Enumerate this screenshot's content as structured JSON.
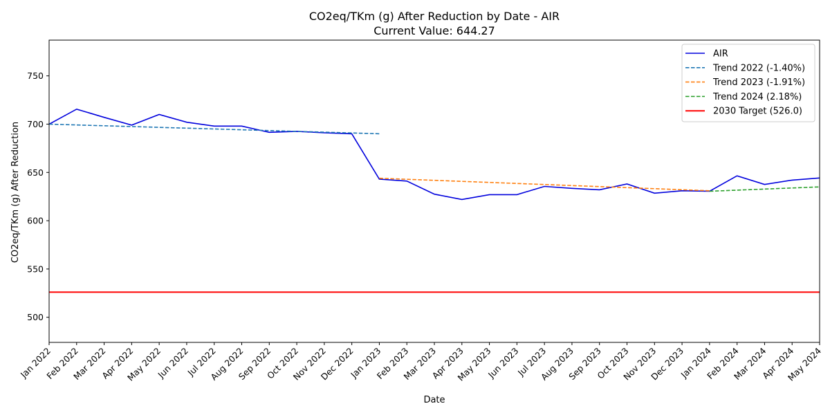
{
  "chart_data": {
    "type": "line",
    "title": "CO2eq/TKm (g) After Reduction by Date - AIR",
    "subtitle": "Current Value: 644.27",
    "xlabel": "Date",
    "ylabel": "CO2eq/TKm (g) After Reduction",
    "ylim": [
      474,
      787
    ],
    "yticks": [
      500,
      550,
      600,
      650,
      700,
      750
    ],
    "x": [
      "Jan 2022",
      "Feb 2022",
      "Mar 2022",
      "Apr 2022",
      "May 2022",
      "Jun 2022",
      "Jul 2022",
      "Aug 2022",
      "Sep 2022",
      "Oct 2022",
      "Nov 2022",
      "Dec 2022",
      "Jan 2023",
      "Feb 2023",
      "Mar 2023",
      "Apr 2023",
      "May 2023",
      "Jun 2023",
      "Jul 2023",
      "Aug 2023",
      "Sep 2023",
      "Oct 2023",
      "Nov 2023",
      "Dec 2023",
      "Jan 2024",
      "Feb 2024",
      "Mar 2024",
      "Apr 2024",
      "May 2024"
    ],
    "legend_position": "top-right",
    "grid": false,
    "series": [
      {
        "name": "AIR",
        "style": "solid",
        "color": "#0000dd",
        "values": [
          700,
          715.5,
          707,
          699,
          710,
          702,
          698,
          698,
          691.5,
          692.5,
          691,
          690,
          643,
          641,
          627.5,
          622,
          627,
          627,
          635.5,
          633.5,
          632,
          638,
          628.5,
          631,
          630.5,
          646.5,
          637.5,
          642,
          644.27
        ]
      },
      {
        "name": "Trend 2022 (-1.40%)",
        "style": "dashed",
        "color": "#1f77b4",
        "x_range": [
          0,
          12
        ],
        "values_at_ends": [
          700,
          690
        ]
      },
      {
        "name": "Trend 2023 (-1.91%)",
        "style": "dashed",
        "color": "#ff7f0e",
        "x_range": [
          12,
          24
        ],
        "values_at_ends": [
          644,
          631
        ]
      },
      {
        "name": "Trend 2024 (2.18%)",
        "style": "dashed",
        "color": "#2ca02c",
        "x_range": [
          24,
          28
        ],
        "values_at_ends": [
          630.5,
          635
        ]
      },
      {
        "name": "2030 Target (526.0)",
        "style": "solid-thick",
        "color": "#ff0000",
        "constant": 526.0
      }
    ]
  }
}
